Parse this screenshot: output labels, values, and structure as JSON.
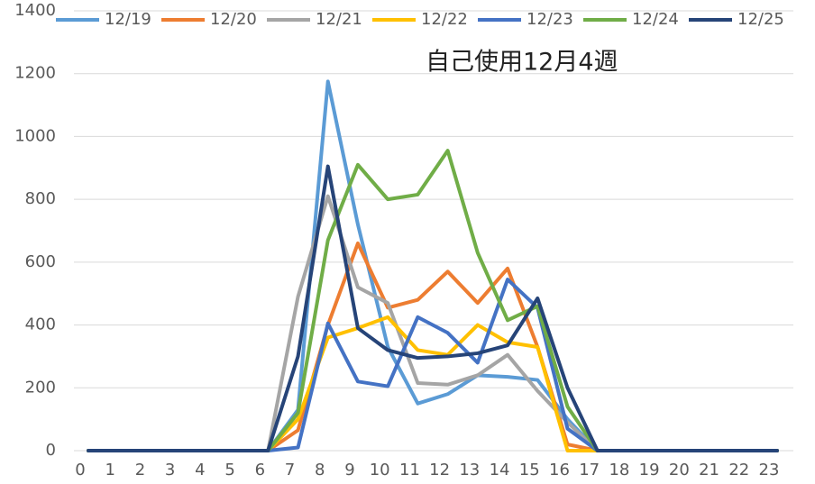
{
  "chart_data": {
    "type": "line",
    "annotation": "自己使用12月4週",
    "categories": [
      "0",
      "1",
      "2",
      "3",
      "4",
      "5",
      "6",
      "7",
      "8",
      "9",
      "10",
      "11",
      "12",
      "13",
      "14",
      "15",
      "16",
      "17",
      "18",
      "19",
      "20",
      "21",
      "22",
      "23"
    ],
    "series": [
      {
        "name": "12/19",
        "color": "#5b9bd5",
        "values": [
          0,
          0,
          0,
          0,
          0,
          0,
          0,
          130,
          1175,
          720,
          330,
          150,
          180,
          240,
          235,
          225,
          100,
          0,
          0,
          0,
          0,
          0,
          0,
          0
        ]
      },
      {
        "name": "12/20",
        "color": "#ed7d31",
        "values": [
          0,
          0,
          0,
          0,
          0,
          0,
          0,
          65,
          400,
          660,
          455,
          480,
          570,
          470,
          580,
          330,
          20,
          0,
          0,
          0,
          0,
          0,
          0,
          0
        ]
      },
      {
        "name": "12/21",
        "color": "#a5a5a5",
        "values": [
          0,
          0,
          0,
          0,
          0,
          0,
          0,
          490,
          810,
          520,
          470,
          215,
          210,
          240,
          305,
          190,
          90,
          0,
          0,
          0,
          0,
          0,
          0,
          0
        ]
      },
      {
        "name": "12/22",
        "color": "#ffc000",
        "values": [
          0,
          0,
          0,
          0,
          0,
          0,
          0,
          100,
          360,
          390,
          425,
          320,
          305,
          400,
          345,
          330,
          0,
          0,
          0,
          0,
          0,
          0,
          0,
          0
        ]
      },
      {
        "name": "12/23",
        "color": "#4472c4",
        "values": [
          0,
          0,
          0,
          0,
          0,
          0,
          0,
          10,
          405,
          220,
          205,
          425,
          375,
          280,
          545,
          455,
          70,
          0,
          0,
          0,
          0,
          0,
          0,
          0
        ]
      },
      {
        "name": "12/24",
        "color": "#70ad47",
        "values": [
          0,
          0,
          0,
          0,
          0,
          0,
          0,
          120,
          670,
          910,
          800,
          815,
          955,
          630,
          415,
          460,
          140,
          0,
          0,
          0,
          0,
          0,
          0,
          0
        ]
      },
      {
        "name": "12/25",
        "color": "#264478",
        "values": [
          0,
          0,
          0,
          0,
          0,
          0,
          0,
          300,
          905,
          390,
          320,
          295,
          300,
          310,
          335,
          485,
          200,
          0,
          0,
          0,
          0,
          0,
          0,
          0
        ]
      }
    ],
    "ylim": [
      0,
      1400
    ],
    "yticks": [
      0,
      200,
      400,
      600,
      800,
      1000,
      1200,
      1400
    ],
    "grid": true
  }
}
